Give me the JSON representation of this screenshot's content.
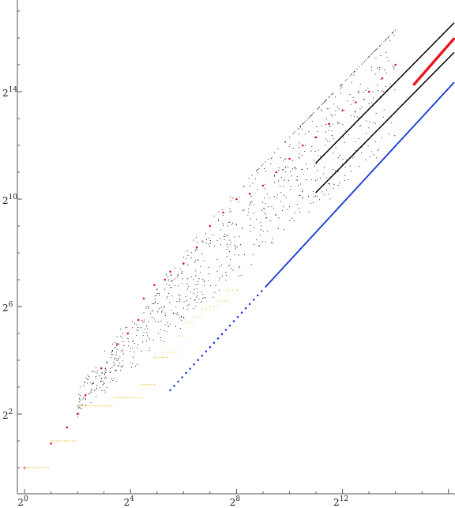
{
  "chart_data": {
    "type": "scatter",
    "title": "",
    "xlabel": "",
    "ylabel": "",
    "scale": "log2",
    "xlim_log2": [
      -0.3,
      16.2
    ],
    "ylim_log2": [
      -1.9,
      17.1
    ],
    "x_major_ticks": [
      {
        "base": "2",
        "exp": "0",
        "value": 0
      },
      {
        "base": "2",
        "exp": "4",
        "value": 4
      },
      {
        "base": "2",
        "exp": "8",
        "value": 8
      },
      {
        "base": "2",
        "exp": "12",
        "value": 12
      }
    ],
    "y_major_ticks": [
      {
        "base": "2",
        "exp": "2",
        "value": 2
      },
      {
        "base": "2",
        "exp": "6",
        "value": 6
      },
      {
        "base": "2",
        "exp": "10",
        "value": 10
      },
      {
        "base": "2",
        "exp": "14",
        "value": 14
      }
    ],
    "grid": false,
    "legend": "none",
    "series": [
      {
        "color": "#e8141c",
        "style": "points",
        "note_points_log2": [
          [
            0,
            0
          ],
          [
            1,
            0.9
          ],
          [
            1.6,
            1.5
          ],
          [
            2,
            2
          ],
          [
            2.3,
            2.7
          ],
          [
            2.9,
            3.7
          ],
          [
            3.5,
            4.6
          ],
          [
            3.9,
            5
          ],
          [
            4.3,
            5.5
          ],
          [
            4.5,
            6.3
          ],
          [
            4.9,
            6.8
          ],
          [
            5.3,
            7
          ],
          [
            5.5,
            7.3
          ],
          [
            6,
            7.6
          ],
          [
            6.5,
            8.2
          ],
          [
            7,
            9
          ],
          [
            7.5,
            9.5
          ],
          [
            8,
            10
          ],
          [
            8.5,
            10.2
          ],
          [
            9,
            10.5
          ],
          [
            9.5,
            11
          ],
          [
            10,
            11.5
          ],
          [
            10.5,
            12
          ],
          [
            11,
            12.3
          ],
          [
            11.5,
            12.8
          ],
          [
            12,
            13.3
          ],
          [
            12.5,
            13.6
          ],
          [
            13,
            14
          ],
          [
            13.5,
            14.5
          ],
          [
            14,
            15
          ]
        ],
        "tail_x_range_log2": [
          14.7,
          16.2
        ],
        "tail_slope": 1.13,
        "tail_intercept": -2.34
      },
      {
        "color": "#000000",
        "style": "dense-line",
        "x_range_log2": [
          11,
          16.2
        ],
        "slope": 1.0,
        "intercept": 0.35
      },
      {
        "color": "#000000",
        "style": "dense-line",
        "x_range_log2": [
          11,
          16.2
        ],
        "slope": 1.0,
        "intercept": -0.75
      },
      {
        "color": "#000000",
        "style": "scatter-cloud",
        "x_range_log2": [
          2,
          14
        ],
        "y_band_log2": [
          0.85,
          1.25
        ]
      },
      {
        "color": "#1f3fd8",
        "style": "points-then-line",
        "x_range_log2": [
          5.5,
          16.2
        ],
        "slope": 1.07,
        "intercept": -3.0
      },
      {
        "color": "#f0c020",
        "style": "steps",
        "steps_log2": [
          {
            "x0": 0,
            "x1": 0.9,
            "y": 0
          },
          {
            "x0": 1,
            "x1": 1.9,
            "y": 1.0
          },
          {
            "x0": 2,
            "x1": 3.3,
            "y": 2.3
          },
          {
            "x0": 3.4,
            "x1": 4.4,
            "y": 2.6
          },
          {
            "x0": 4.4,
            "x1": 4.9,
            "y": 3.1
          },
          {
            "x0": 4.9,
            "x1": 5.4,
            "y": 4.1
          },
          {
            "x0": 5.4,
            "x1": 5.8,
            "y": 4.3
          },
          {
            "x0": 5.8,
            "x1": 6.1,
            "y": 4.9
          },
          {
            "x0": 6.1,
            "x1": 6.4,
            "y": 5.4
          },
          {
            "x0": 6.4,
            "x1": 6.7,
            "y": 5.6
          },
          {
            "x0": 6.7,
            "x1": 7.0,
            "y": 5.9
          },
          {
            "x0": 7.0,
            "x1": 7.3,
            "y": 6.0
          },
          {
            "x0": 7.3,
            "x1": 7.7,
            "y": 6.2
          },
          {
            "x0": 7.7,
            "x1": 8.0,
            "y": 6.6
          }
        ]
      }
    ]
  }
}
